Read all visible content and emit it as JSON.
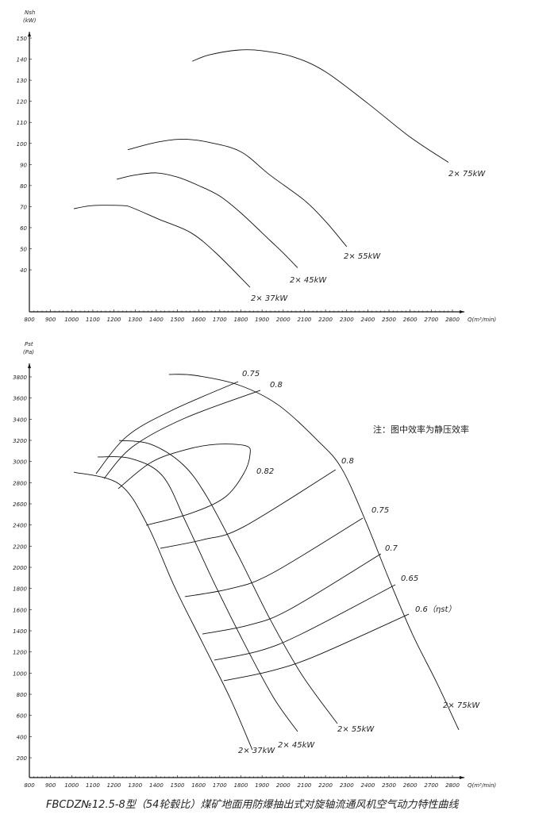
{
  "title": "FBCDZ№12.5-8型（54轮毂比）煤矿地面用防爆抽出式对旋轴流通风机空气动力特性曲线",
  "chart_data": [
    {
      "type": "line",
      "ylabel_line1": "Nsh",
      "ylabel_line2": "(kW)",
      "xlabel": "Q(m³/min)",
      "xlim": [
        800,
        2850
      ],
      "ylim": [
        20,
        150
      ],
      "x_ticks": [
        800,
        900,
        1000,
        1100,
        1200,
        1300,
        1400,
        1500,
        1600,
        1700,
        1800,
        1900,
        2000,
        2100,
        2200,
        2300,
        2400,
        2500,
        2600,
        2700,
        2800
      ],
      "y_ticks": [
        40,
        50,
        60,
        70,
        80,
        90,
        100,
        110,
        120,
        130,
        140,
        150
      ],
      "grid": false,
      "series": [
        {
          "name": "2× 75kW",
          "points": [
            [
              1570,
              139
            ],
            [
              1650,
              142
            ],
            [
              1787,
              144.3
            ],
            [
              1900,
              144
            ],
            [
              2050,
              141
            ],
            [
              2200,
              134
            ],
            [
              2400,
              119
            ],
            [
              2600,
              103
            ],
            [
              2781,
              91
            ]
          ]
        },
        {
          "name": "2× 55kW",
          "points": [
            [
              1265,
              97
            ],
            [
              1400,
              100.5
            ],
            [
              1524,
              102
            ],
            [
              1650,
              100.5
            ],
            [
              1800,
              96
            ],
            [
              1937,
              85
            ],
            [
              2100,
              73
            ],
            [
              2200,
              63
            ],
            [
              2300,
              51
            ]
          ]
        },
        {
          "name": "2× 45kW",
          "points": [
            [
              1213,
              83
            ],
            [
              1300,
              85
            ],
            [
              1400,
              86
            ],
            [
              1500,
              84
            ],
            [
              1600,
              80
            ],
            [
              1700,
              75
            ],
            [
              1800,
              67
            ],
            [
              1937,
              54
            ],
            [
              2000,
              48
            ],
            [
              2068,
              41
            ]
          ]
        },
        {
          "name": "2× 37kW",
          "points": [
            [
              1010,
              69
            ],
            [
              1100,
              70.5
            ],
            [
              1240,
              70.5
            ],
            [
              1288,
              69.4
            ],
            [
              1412,
              64
            ],
            [
              1562,
              57.7
            ],
            [
              1686,
              47.6
            ],
            [
              1843,
              31.7
            ]
          ]
        }
      ]
    },
    {
      "type": "line",
      "ylabel_line1": "Pst",
      "ylabel_line2": "(Pa)",
      "xlabel": "Q(m³/min)",
      "xlim": [
        800,
        2850
      ],
      "ylim": [
        0,
        3950
      ],
      "x_ticks": [
        800,
        900,
        1000,
        1100,
        1200,
        1300,
        1400,
        1500,
        1600,
        1700,
        1800,
        1900,
        2000,
        2100,
        2200,
        2300,
        2400,
        2500,
        2600,
        2700,
        2800
      ],
      "y_ticks": [
        200,
        400,
        600,
        800,
        1000,
        1200,
        1400,
        1600,
        1800,
        2000,
        2200,
        2400,
        2600,
        2800,
        3000,
        3200,
        3400,
        3600,
        3800
      ],
      "grid": false,
      "note": "注：图中效率为静压效率",
      "series": [
        {
          "name": "2× 37kW",
          "points": [
            [
              1010,
              2900
            ],
            [
              1224,
              2788
            ],
            [
              1355,
              2413
            ],
            [
              1487,
              1813
            ],
            [
              1618,
              1288
            ],
            [
              1749,
              763
            ],
            [
              1854,
              275
            ]
          ]
        },
        {
          "name": "2× 45kW",
          "points": [
            [
              1123,
              3043
            ],
            [
              1280,
              3028
            ],
            [
              1430,
              2863
            ],
            [
              1543,
              2413
            ],
            [
              1674,
              1850
            ],
            [
              1824,
              1250
            ],
            [
              1956,
              763
            ],
            [
              2068,
              448
            ]
          ]
        },
        {
          "name": "2× 55kW",
          "points": [
            [
              1224,
              3200
            ],
            [
              1374,
              3163
            ],
            [
              1524,
              2975
            ],
            [
              1637,
              2675
            ],
            [
              1787,
              2113
            ],
            [
              1937,
              1513
            ],
            [
              2087,
              988
            ],
            [
              2256,
              523
            ]
          ]
        },
        {
          "name": "2× 75kW",
          "points": [
            [
              1460,
              3823
            ],
            [
              1580,
              3815
            ],
            [
              1787,
              3725
            ],
            [
              1974,
              3538
            ],
            [
              2162,
              3200
            ],
            [
              2275,
              2938
            ],
            [
              2387,
              2450
            ],
            [
              2500,
              1888
            ],
            [
              2612,
              1363
            ],
            [
              2725,
              913
            ],
            [
              2830,
              463
            ]
          ]
        }
      ],
      "efficiency_curves": [
        {
          "label": "0.75",
          "points": [
            [
              1115,
              2885
            ],
            [
              1261,
              3238
            ],
            [
              1475,
              3485
            ],
            [
              1787,
              3755
            ]
          ]
        },
        {
          "label": "0.8",
          "points": [
            [
              1153,
              2840
            ],
            [
              1288,
              3140
            ],
            [
              1535,
              3410
            ],
            [
              1892,
              3673
            ]
          ]
        },
        {
          "label": "0.82",
          "points": [
            [
              1220,
              2743
            ],
            [
              1374,
              2990
            ],
            [
              1535,
              3110
            ],
            [
              1685,
              3163
            ],
            [
              1824,
              3148
            ],
            [
              1843,
              3065
            ],
            [
              1813,
              2885
            ],
            [
              1723,
              2660
            ],
            [
              1562,
              2510
            ],
            [
              1352,
              2398
            ]
          ]
        },
        {
          "label": "0.8",
          "points": [
            [
              1419,
              2180
            ],
            [
              1625,
              2263
            ],
            [
              1813,
              2383
            ],
            [
              2248,
              2923
            ]
          ]
        },
        {
          "label": "0.75",
          "points": [
            [
              1535,
              1723
            ],
            [
              1749,
              1798
            ],
            [
              1944,
              1940
            ],
            [
              2376,
              2465
            ]
          ]
        },
        {
          "label": "0.7",
          "points": [
            [
              1618,
              1370
            ],
            [
              1836,
              1453
            ],
            [
              2031,
              1603
            ],
            [
              2462,
              2128
            ]
          ]
        },
        {
          "label": "0.65",
          "points": [
            [
              1674,
              1123
            ],
            [
              1892,
              1213
            ],
            [
              2094,
              1378
            ],
            [
              2530,
              1835
            ]
          ]
        },
        {
          "label": "0.6（ηst）",
          "points": [
            [
              1719,
              928
            ],
            [
              1937,
              1018
            ],
            [
              2151,
              1160
            ],
            [
              2594,
              1558
            ]
          ]
        }
      ]
    }
  ]
}
